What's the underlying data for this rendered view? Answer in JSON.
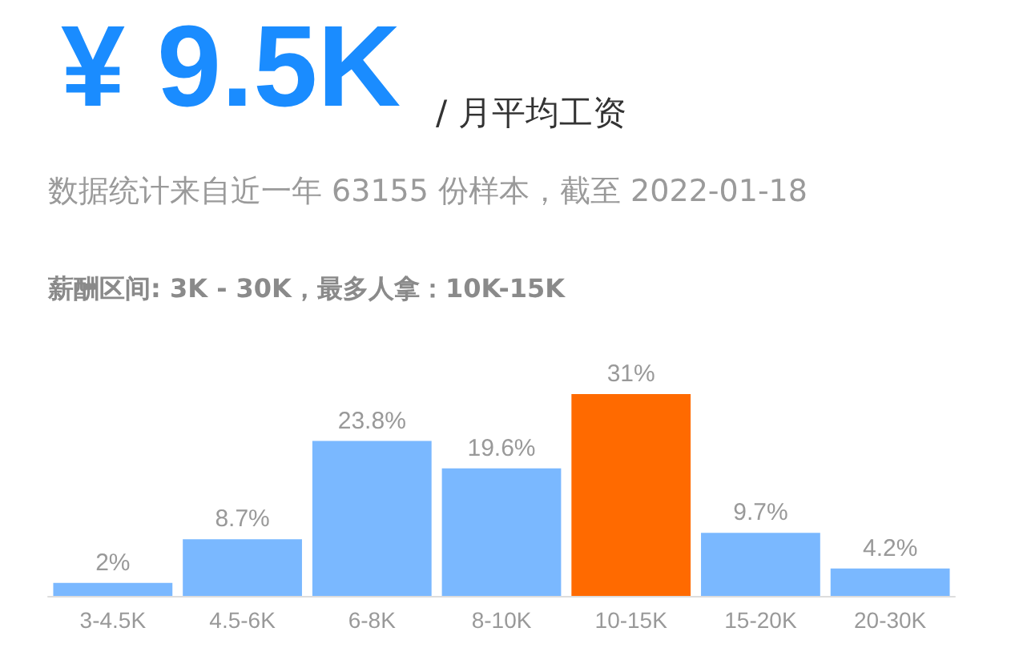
{
  "chart_data": {
    "type": "bar",
    "title": "¥ 9.5K",
    "subtitle": "/ 月平均工资",
    "annotations": [
      "数据统计来自近一年 63155 份样本，截至 2022-01-18",
      "薪酬区间: 3K - 30K，最多人拿：10K-15K"
    ],
    "categories": [
      "3-4.5K",
      "4.5-6K",
      "6-8K",
      "8-10K",
      "10-15K",
      "15-20K",
      "20-30K"
    ],
    "values": [
      2,
      8.7,
      23.8,
      19.6,
      31,
      9.7,
      4.2
    ],
    "value_labels": [
      "2%",
      "8.7%",
      "23.8%",
      "19.6%",
      "31%",
      "9.7%",
      "4.2%"
    ],
    "colors": [
      "#7ab8ff",
      "#7ab8ff",
      "#7ab8ff",
      "#7ab8ff",
      "#ff6a00",
      "#7ab8ff",
      "#7ab8ff"
    ]
  }
}
